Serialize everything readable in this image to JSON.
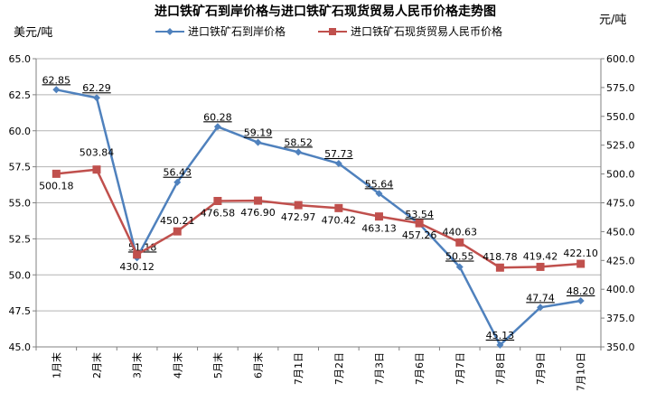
{
  "chart_data": {
    "type": "line",
    "title": "进口铁矿石到岸价格与进口铁矿石现货贸易人民币价格走势图",
    "y_left_unit": "美元/吨",
    "y_right_unit": "元/吨",
    "categories": [
      "1月末",
      "2月末",
      "3月末",
      "4月末",
      "5月末",
      "6月末",
      "7月1日",
      "7月2日",
      "7月3日",
      "7月6日",
      "7月7日",
      "7月8日",
      "7月9日",
      "7月10日"
    ],
    "y_left_ticks": [
      "45.0",
      "47.5",
      "50.0",
      "52.5",
      "55.0",
      "57.5",
      "60.0",
      "62.5",
      "65.0"
    ],
    "y_right_ticks": [
      "350.0",
      "375.0",
      "400.0",
      "425.0",
      "450.0",
      "475.0",
      "500.0",
      "525.0",
      "550.0",
      "575.0",
      "600.0"
    ],
    "ylim_left": [
      45,
      65
    ],
    "ylim_right": [
      350,
      600
    ],
    "grid": true,
    "legend_position": "top",
    "series": [
      {
        "name": "进口铁矿石到岸价格",
        "axis": "left",
        "color": "#4f81bd",
        "marker": "diamond",
        "values": [
          62.85,
          62.29,
          51.18,
          56.43,
          60.28,
          59.19,
          58.52,
          57.73,
          55.64,
          53.54,
          50.55,
          45.13,
          47.74,
          48.2
        ],
        "labels": [
          "62.85",
          "62.29",
          "51.18",
          "56.43",
          "60.28",
          "59.19",
          "58.52",
          "57.73",
          "55.64",
          "53.54",
          "50.55",
          "45.13",
          "47.74",
          "48.20"
        ]
      },
      {
        "name": "进口铁矿石现货贸易人民币价格",
        "axis": "right",
        "color": "#c0504d",
        "marker": "square",
        "values": [
          500.18,
          503.84,
          430.12,
          450.21,
          476.58,
          476.9,
          472.97,
          470.42,
          463.13,
          457.26,
          440.63,
          418.78,
          419.42,
          422.1
        ],
        "labels": [
          "500.18",
          "503.84",
          "430.12",
          "450.21",
          "476.58",
          "476.90",
          "472.97",
          "470.42",
          "463.13",
          "457.26",
          "440.63",
          "418.78",
          "419.42",
          "422.10"
        ]
      }
    ]
  }
}
